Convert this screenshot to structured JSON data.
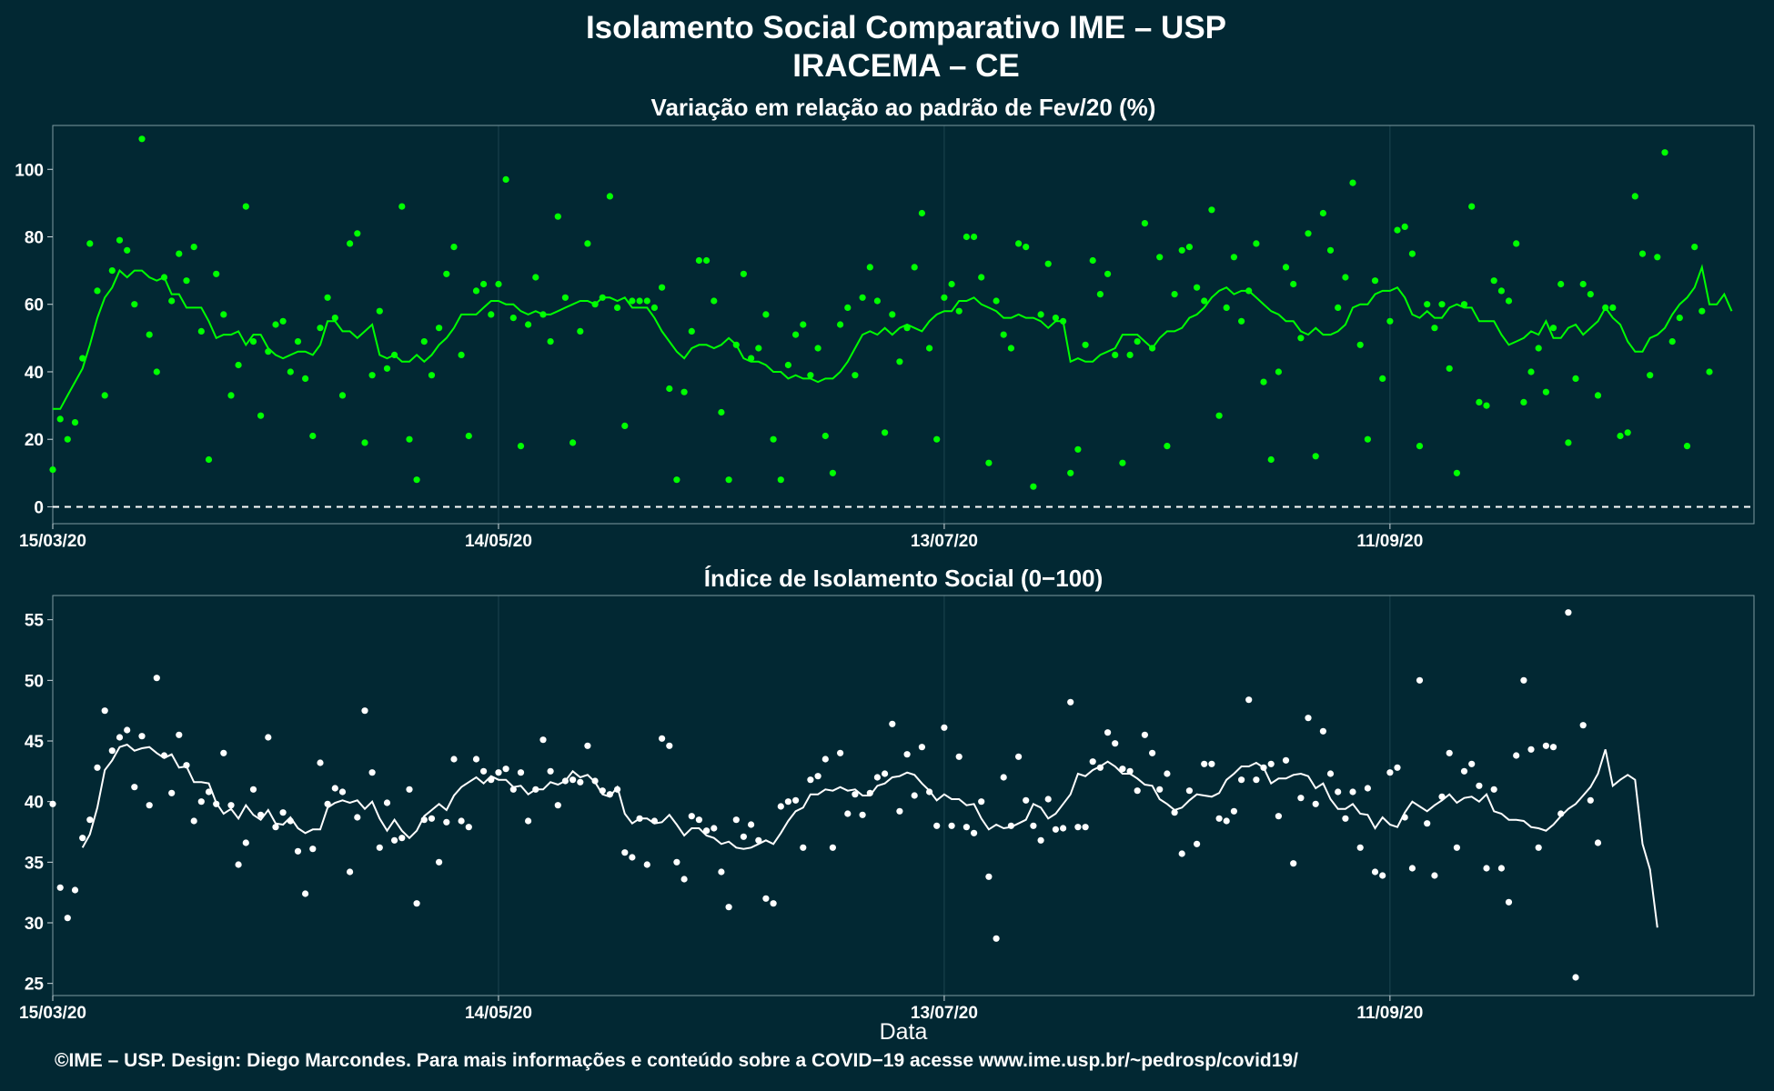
{
  "header": {
    "title": "Isolamento Social Comparativo IME – USP",
    "subtitle": "IRACEMA – CE"
  },
  "footer": {
    "credit": "©IME – USP. Design: Diego Marcondes. Para mais informações e conteúdo sobre a COVID−19 acesse www.ime.usp.br/~pedrosp/covid19/"
  },
  "colors": {
    "background": "#022833",
    "top_series": "#00ff00",
    "bottom_series": "#ffffff",
    "zero_line": "#ffffff"
  },
  "chart_data": [
    {
      "type": "scatter",
      "title": "Variação em relação ao padrão de Fev/20 (%)",
      "xlabel": "",
      "ylabel": "",
      "x_start": "15/03/20",
      "x_range_days": [
        0,
        229
      ],
      "ylim": [
        -5,
        113
      ],
      "yticks": [
        0,
        20,
        40,
        60,
        80,
        100
      ],
      "xticks": [
        {
          "day": 0,
          "label": "15/03/20"
        },
        {
          "day": 60,
          "label": "14/05/20"
        },
        {
          "day": 120,
          "label": "13/07/20"
        },
        {
          "day": 180,
          "label": "11/09/20"
        }
      ],
      "grid": true,
      "reference_line": {
        "value": 0,
        "style": "dashed"
      },
      "points": [
        11,
        26,
        20,
        25,
        44,
        78,
        64,
        33,
        70,
        79,
        76,
        60,
        109,
        51,
        40,
        68,
        61,
        75,
        67,
        77,
        52,
        14,
        69,
        57,
        33,
        42,
        89,
        49,
        27,
        46,
        54,
        55,
        40,
        49,
        38,
        21,
        53,
        62,
        56,
        33,
        78,
        81,
        19,
        39,
        58,
        41,
        45,
        89,
        20,
        8,
        49,
        39,
        53,
        69,
        77,
        45,
        21,
        64,
        66,
        57,
        66,
        97,
        56,
        18,
        54,
        68,
        57,
        49,
        86,
        62,
        19,
        52,
        78,
        60,
        62,
        92,
        59,
        24,
        61,
        61,
        61,
        59,
        65,
        35,
        8,
        34,
        52,
        73,
        73,
        61,
        28,
        8,
        48,
        69,
        44,
        47,
        57,
        20,
        8,
        42,
        51,
        54,
        39,
        47,
        21,
        10,
        54,
        59,
        39,
        62,
        71,
        61,
        22,
        57,
        43,
        53,
        71,
        87,
        47,
        20,
        62,
        66,
        58,
        80,
        80,
        68,
        13,
        61,
        51,
        47,
        78,
        77,
        6,
        57,
        72,
        56,
        55,
        10,
        17,
        48,
        73,
        63,
        69,
        45,
        13,
        45,
        49,
        84,
        47,
        74,
        18,
        63,
        76,
        77,
        65,
        61,
        88,
        27,
        59,
        74,
        55,
        64,
        78,
        37,
        14,
        40,
        71,
        66,
        50,
        81,
        15,
        87,
        76,
        59,
        68,
        96,
        48,
        20,
        67,
        38,
        55,
        82,
        83,
        75,
        18,
        60,
        53,
        60,
        41,
        10,
        60,
        89,
        31,
        30,
        67,
        64,
        61,
        78,
        31,
        40,
        47,
        34,
        53,
        66,
        19,
        38,
        66,
        63,
        33,
        59,
        59,
        21,
        22,
        92,
        75,
        39,
        74,
        105,
        49,
        56,
        18,
        77,
        58,
        40
      ],
      "moving_average": [
        29,
        29,
        33,
        37,
        41,
        48,
        56,
        62,
        65,
        70,
        68,
        70,
        70,
        68,
        67,
        68,
        63,
        63,
        59,
        59,
        59,
        55,
        50,
        51,
        51,
        52,
        48,
        51,
        51,
        47,
        45,
        44,
        45,
        46,
        46,
        45,
        48,
        55,
        55,
        52,
        52,
        50,
        52,
        54,
        45,
        44,
        45,
        43,
        43,
        45,
        43,
        45,
        48,
        50,
        53,
        57,
        57,
        57,
        59,
        61,
        61,
        60,
        60,
        58,
        57,
        58,
        57,
        57,
        58,
        59,
        60,
        61,
        61,
        60,
        62,
        62,
        61,
        62,
        59,
        59,
        59,
        56,
        52,
        49,
        46,
        44,
        47,
        48,
        48,
        47,
        48,
        50,
        48,
        44,
        43,
        43,
        42,
        40,
        40,
        38,
        39,
        38,
        38,
        37,
        38,
        38,
        40,
        43,
        47,
        51,
        52,
        51,
        53,
        51,
        53,
        54,
        53,
        52,
        55,
        57,
        58,
        58,
        61,
        61,
        62,
        60,
        59,
        58,
        56,
        56,
        57,
        56,
        56,
        55,
        53,
        55,
        55,
        43,
        44,
        43,
        43,
        45,
        46,
        47,
        51,
        51,
        51,
        49,
        47,
        50,
        52,
        52,
        53,
        56,
        57,
        59,
        62,
        64,
        65,
        63,
        64,
        64,
        62,
        60,
        58,
        57,
        55,
        55,
        52,
        51,
        53,
        51,
        51,
        52,
        54,
        59,
        60,
        60,
        63,
        64,
        64,
        65,
        62,
        57,
        56,
        58,
        56,
        56,
        59,
        60,
        59,
        59,
        55,
        55,
        55,
        51,
        48,
        49,
        50,
        52,
        51,
        55,
        50,
        50,
        53,
        54,
        51,
        53,
        55,
        59,
        56,
        54,
        49,
        46,
        46,
        50,
        51,
        53,
        57,
        60,
        62,
        65,
        71,
        60,
        60,
        63,
        58,
        null
      ]
    },
    {
      "type": "scatter",
      "title": "Índice de Isolamento Social (0−100)",
      "xlabel": "Data",
      "ylabel": "",
      "x_start": "15/03/20",
      "x_range_days": [
        0,
        229
      ],
      "ylim": [
        24,
        57
      ],
      "yticks": [
        25,
        30,
        35,
        40,
        45,
        50,
        55
      ],
      "xticks": [
        {
          "day": 0,
          "label": "15/03/20"
        },
        {
          "day": 60,
          "label": "14/05/20"
        },
        {
          "day": 120,
          "label": "13/07/20"
        },
        {
          "day": 180,
          "label": "11/09/20"
        }
      ],
      "grid": true,
      "points": [
        39.8,
        32.9,
        30.4,
        32.7,
        37.0,
        38.5,
        42.8,
        47.5,
        44.2,
        45.3,
        45.9,
        41.2,
        45.4,
        39.7,
        50.2,
        43.8,
        40.7,
        45.5,
        43.0,
        38.4,
        40.0,
        40.8,
        39.8,
        44.0,
        39.7,
        34.8,
        36.6,
        41.0,
        38.9,
        45.3,
        37.9,
        39.1,
        38.4,
        35.9,
        32.4,
        36.1,
        43.2,
        39.8,
        41.1,
        40.8,
        34.2,
        38.7,
        47.5,
        42.4,
        36.2,
        39.9,
        36.8,
        37.0,
        41.0,
        31.6,
        38.5,
        38.6,
        35.0,
        38.3,
        43.5,
        38.4,
        37.9,
        43.5,
        42.5,
        41.8,
        42.4,
        42.7,
        41.0,
        42.4,
        38.4,
        41.0,
        45.1,
        42.5,
        39.7,
        41.7,
        41.8,
        41.6,
        44.6,
        41.7,
        40.9,
        40.6,
        41.0,
        35.8,
        35.4,
        38.6,
        34.8,
        38.4,
        45.2,
        44.6,
        35.0,
        33.6,
        38.8,
        38.5,
        37.6,
        37.8,
        34.2,
        31.3,
        38.5,
        37.1,
        38.1,
        36.8,
        32.0,
        31.6,
        39.6,
        40.0,
        40.1,
        36.2,
        41.8,
        42.1,
        43.5,
        36.2,
        44.0,
        39.0,
        40.6,
        38.9,
        40.7,
        42.0,
        42.3,
        46.4,
        39.2,
        43.9,
        40.5,
        44.5,
        40.8,
        38.0,
        46.1,
        38.0,
        43.7,
        37.9,
        37.4,
        40.0,
        33.8,
        28.7,
        42.0,
        38.0,
        43.7,
        40.1,
        38.0,
        36.8,
        40.2,
        37.7,
        37.8,
        48.2,
        37.9,
        37.9,
        43.3,
        42.8,
        45.7,
        44.8,
        42.7,
        42.5,
        40.9,
        45.5,
        44.0,
        41.0,
        42.3,
        39.1,
        35.7,
        40.9,
        36.5,
        43.1,
        43.1,
        38.6,
        38.4,
        39.2,
        41.8,
        48.4,
        41.8,
        42.8,
        43.1,
        38.8,
        43.4,
        34.9,
        40.3,
        46.9,
        39.8,
        45.8,
        42.3,
        40.8,
        38.6,
        40.8,
        36.2,
        41.1,
        34.2,
        33.9,
        42.4,
        42.8,
        38.7,
        34.5,
        50.0,
        38.2,
        33.9,
        40.4,
        44.0,
        36.2,
        42.5,
        43.1,
        41.3,
        34.5,
        41.0,
        34.5,
        31.7,
        43.8,
        50.0,
        44.3,
        36.2,
        44.6,
        44.5,
        39.0,
        55.6,
        25.5,
        46.3,
        40.1,
        36.6
      ],
      "moving_average": [
        null,
        null,
        null,
        null,
        36.2,
        37.3,
        39.5,
        42.6,
        43.4,
        44.5,
        44.7,
        44.2,
        44.4,
        44.5,
        44.0,
        43.6,
        43.9,
        42.8,
        42.9,
        41.6,
        41.6,
        41.5,
        39.9,
        39.0,
        39.4,
        38.6,
        39.7,
        38.9,
        38.5,
        39.3,
        38.2,
        38.1,
        38.7,
        37.8,
        37.4,
        37.7,
        37.7,
        39.5,
        39.9,
        40.1,
        39.9,
        40.1,
        39.4,
        40.0,
        38.6,
        37.6,
        38.5,
        37.6,
        37.0,
        37.6,
        38.8,
        39.3,
        39.8,
        39.3,
        40.5,
        41.2,
        41.6,
        42.0,
        41.5,
        42.1,
        41.8,
        41.8,
        41.2,
        41.3,
        40.6,
        41.0,
        41.0,
        41.6,
        41.4,
        41.7,
        42.5,
        42.0,
        42.2,
        41.6,
        40.6,
        40.4,
        41.2,
        39.0,
        38.2,
        38.6,
        38.6,
        38.2,
        38.3,
        38.9,
        38.1,
        37.2,
        37.8,
        37.8,
        37.2,
        37.0,
        36.5,
        36.7,
        36.2,
        36.1,
        36.2,
        36.5,
        36.8,
        36.5,
        37.4,
        38.4,
        39.2,
        39.5,
        40.6,
        40.6,
        41.0,
        40.9,
        41.2,
        40.9,
        41.0,
        40.5,
        40.5,
        41.3,
        41.5,
        42.0,
        42.1,
        42.4,
        42.2,
        41.5,
        40.9,
        40.1,
        40.6,
        40.2,
        40.2,
        39.7,
        39.8,
        38.6,
        37.7,
        38.1,
        37.8,
        37.9,
        38.2,
        38.5,
        39.8,
        39.5,
        38.6,
        39.0,
        39.8,
        40.6,
        42.3,
        42.1,
        42.6,
        42.9,
        43.3,
        42.9,
        42.3,
        42.3,
        41.9,
        41.4,
        41.3,
        40.2,
        39.8,
        39.3,
        39.5,
        40.1,
        40.6,
        40.5,
        40.4,
        40.7,
        41.8,
        42.3,
        42.9,
        42.9,
        43.2,
        42.8,
        41.5,
        41.9,
        41.9,
        42.2,
        42.3,
        42.1,
        41.1,
        41.5,
        40.2,
        39.4,
        39.4,
        39.8,
        39.0,
        38.9,
        37.8,
        38.7,
        38.1,
        37.9,
        39.1,
        40.0,
        39.6,
        39.2,
        39.7,
        40.1,
        40.6,
        39.9,
        40.3,
        40.4,
        40.0,
        40.6,
        39.2,
        39.0,
        38.5,
        38.5,
        38.4,
        37.9,
        37.8,
        37.6,
        38.1,
        38.8,
        39.4,
        39.8,
        40.5,
        41.2,
        42.3,
        44.3,
        41.3,
        41.8,
        42.2,
        41.8,
        36.5,
        34.4,
        29.6
      ]
    }
  ]
}
